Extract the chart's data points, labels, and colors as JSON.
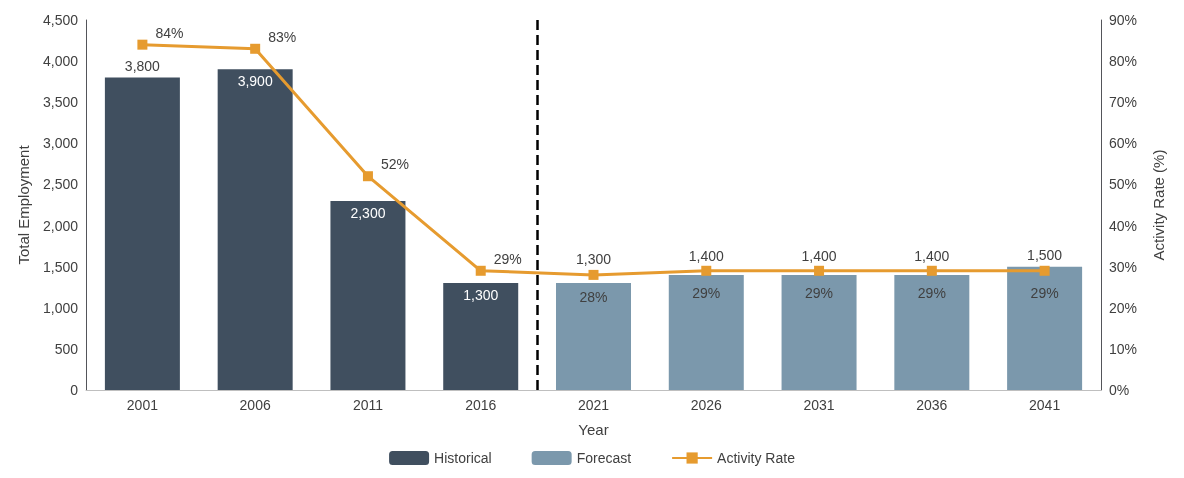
{
  "chart_data": {
    "type": "bar",
    "xlabel": "Year",
    "ylabel": "Total Employment",
    "y2label": "Activity Rate (%)",
    "x": [
      2001,
      2006,
      2011,
      2016,
      2021,
      2026,
      2031,
      2036,
      2041
    ],
    "xlim": [
      1998.5,
      2043.5
    ],
    "xticks": [
      2001,
      2006,
      2011,
      2016,
      2021,
      2026,
      2031,
      2036,
      2041
    ],
    "ylim": [
      0,
      4500
    ],
    "yticks": [
      {
        "value": 0,
        "label": "0"
      },
      {
        "value": 500,
        "label": "500"
      },
      {
        "value": 1000,
        "label": "1,000"
      },
      {
        "value": 1500,
        "label": "1,500"
      },
      {
        "value": 2000,
        "label": "2,000"
      },
      {
        "value": 2500,
        "label": "2,500"
      },
      {
        "value": 3000,
        "label": "3,000"
      },
      {
        "value": 3500,
        "label": "3,500"
      },
      {
        "value": 4000,
        "label": "4,000"
      },
      {
        "value": 4500,
        "label": "4,500"
      }
    ],
    "y2lim": [
      0,
      90
    ],
    "y2ticks": [
      {
        "value": 0,
        "label": "0%"
      },
      {
        "value": 10,
        "label": "10%"
      },
      {
        "value": 20,
        "label": "20%"
      },
      {
        "value": 30,
        "label": "30%"
      },
      {
        "value": 40,
        "label": "40%"
      },
      {
        "value": 50,
        "label": "50%"
      },
      {
        "value": 60,
        "label": "60%"
      },
      {
        "value": 70,
        "label": "70%"
      },
      {
        "value": 80,
        "label": "80%"
      },
      {
        "value": 90,
        "label": "90%"
      }
    ],
    "series": [
      {
        "name": "Historical",
        "color": "#404f5f",
        "values": [
          3800,
          3900,
          2300,
          1300,
          null,
          null,
          null,
          null,
          null
        ],
        "value_labels": [
          "3,800",
          "3,900",
          "2,300",
          "1,300",
          null,
          null,
          null,
          null,
          null
        ]
      },
      {
        "name": "Forecast",
        "color": "#7b98ac",
        "values": [
          null,
          null,
          null,
          null,
          1300,
          1400,
          1400,
          1400,
          1500
        ],
        "value_labels": [
          null,
          null,
          null,
          null,
          "1,300",
          "1,400",
          "1,400",
          "1,400",
          "1,500"
        ]
      },
      {
        "name": "Activity Rate",
        "type": "line",
        "axis": "y2",
        "color": "#e69b2f",
        "marker": "square",
        "values": [
          84,
          83,
          52,
          29,
          28,
          29,
          29,
          29,
          29
        ],
        "value_labels": [
          "84%",
          "83%",
          "52%",
          "29%",
          "28%",
          "29%",
          "29%",
          "29%",
          "29%"
        ]
      }
    ],
    "ref_lines": [
      {
        "axis": "x",
        "value": 2018.5,
        "color": "#000000",
        "line_style": "dashed"
      }
    ],
    "grid": false,
    "legend": "bottom"
  }
}
